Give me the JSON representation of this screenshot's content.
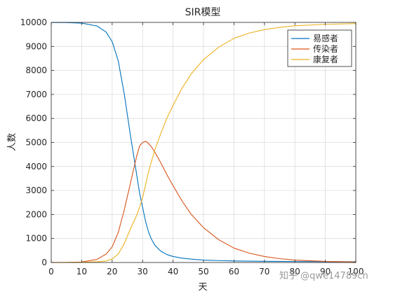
{
  "chart_data": {
    "type": "line",
    "title": "SIR模型",
    "xlabel": "天",
    "ylabel": "人数",
    "xlim": [
      0,
      100
    ],
    "ylim": [
      0,
      10000
    ],
    "x_ticks": [
      0,
      10,
      20,
      30,
      40,
      50,
      60,
      70,
      80,
      90,
      100
    ],
    "y_ticks": [
      0,
      1000,
      2000,
      3000,
      4000,
      5000,
      6000,
      7000,
      8000,
      9000,
      10000
    ],
    "grid": true,
    "legend_position": "top-right",
    "x": [
      0,
      5,
      10,
      15,
      18,
      20,
      22,
      24,
      26,
      28,
      29,
      30,
      31,
      32,
      33,
      34,
      36,
      38,
      40,
      43,
      46,
      50,
      55,
      60,
      65,
      70,
      75,
      80,
      90,
      100
    ],
    "series": [
      {
        "name": "易感者",
        "color": "#0072BD",
        "values": [
          9999,
          9995,
          9970,
          9850,
          9600,
          9200,
          8400,
          7000,
          5300,
          3700,
          2900,
          2300,
          1700,
          1250,
          950,
          720,
          470,
          330,
          250,
          180,
          140,
          100,
          80,
          65,
          55,
          50,
          45,
          40,
          35,
          30
        ]
      },
      {
        "name": "传染者",
        "color": "#D95319",
        "values": [
          1,
          3,
          20,
          130,
          350,
          650,
          1250,
          2200,
          3300,
          4400,
          4850,
          5000,
          5050,
          4950,
          4800,
          4600,
          4150,
          3650,
          3200,
          2550,
          2000,
          1450,
          950,
          600,
          390,
          250,
          160,
          100,
          45,
          20
        ]
      },
      {
        "name": "康复者",
        "color": "#EDB120",
        "values": [
          0,
          2,
          10,
          30,
          60,
          150,
          350,
          800,
          1400,
          1950,
          2300,
          2700,
          3250,
          3800,
          4250,
          4680,
          5380,
          6020,
          6550,
          7270,
          7860,
          8450,
          8970,
          9335,
          9555,
          9700,
          9795,
          9860,
          9920,
          9950
        ]
      }
    ]
  },
  "watermark": "知乎 @qwe14789cn"
}
